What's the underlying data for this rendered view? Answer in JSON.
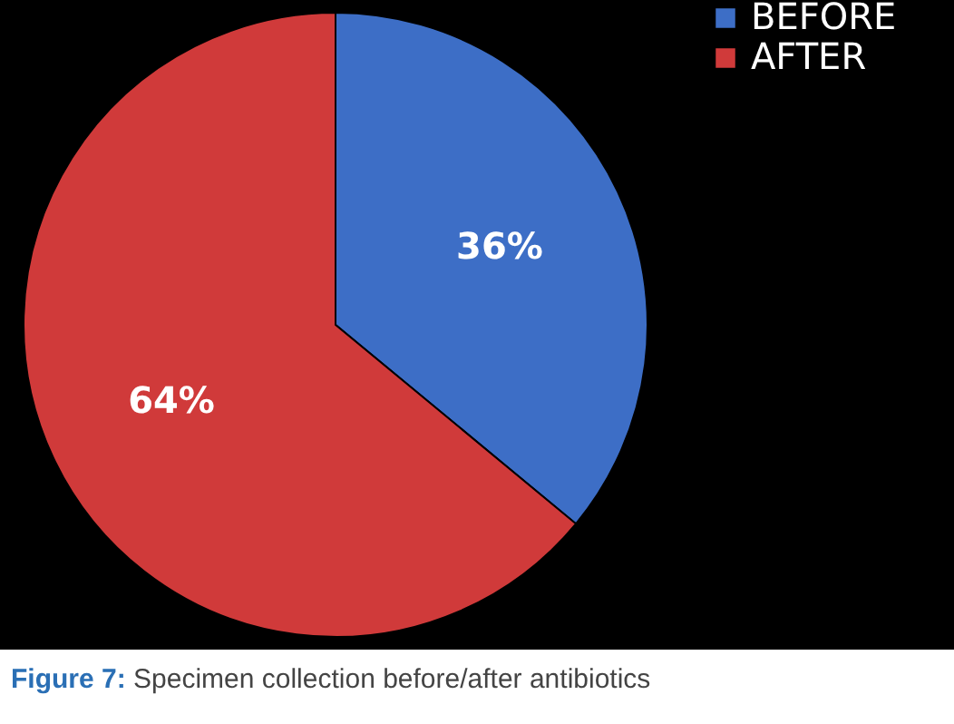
{
  "chart_data": {
    "type": "pie",
    "categories": [
      "BEFORE",
      "AFTER"
    ],
    "values": [
      36,
      64
    ],
    "colors": [
      "#3d6ec6",
      "#d03a3a"
    ],
    "value_labels": [
      "36%",
      "64%"
    ],
    "legend": "right",
    "annotations": [
      "Figure 7: Specimen collection before/after antibiotics"
    ]
  }
}
